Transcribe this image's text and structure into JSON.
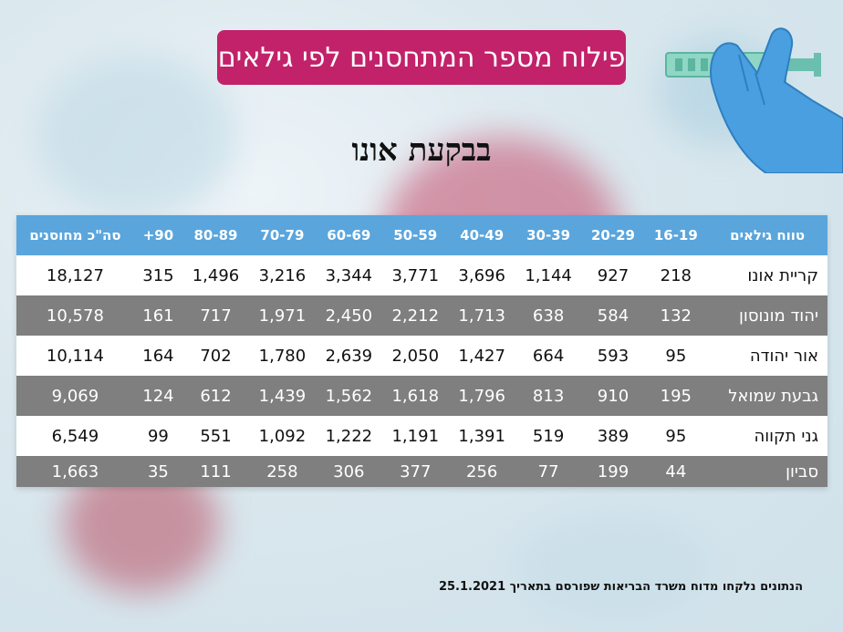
{
  "title": "פילוח מספר המתחסנים לפי גילאים",
  "subtitle": "בבקעת אונו",
  "headers": [
    "טווח גילאים",
    "16-19",
    "20-29",
    "30-39",
    "40-49",
    "50-59",
    "60-69",
    "70-79",
    "80-89",
    "90+",
    "סה\"כ מחוסנים"
  ],
  "rows": [
    {
      "city": "קריית אונו",
      "values": [
        "218",
        "927",
        "1,144",
        "3,696",
        "3,771",
        "3,344",
        "3,216",
        "1,496",
        "315",
        "18,127"
      ]
    },
    {
      "city": "יהוד מונוסון",
      "values": [
        "132",
        "584",
        "638",
        "1,713",
        "2,212",
        "2,450",
        "1,971",
        "717",
        "161",
        "10,578"
      ]
    },
    {
      "city": "אור יהודה",
      "values": [
        "95",
        "593",
        "664",
        "1,427",
        "2,050",
        "2,639",
        "1,780",
        "702",
        "164",
        "10,114"
      ]
    },
    {
      "city": "גבעת שמואל",
      "values": [
        "195",
        "910",
        "813",
        "1,796",
        "1,618",
        "1,562",
        "1,439",
        "612",
        "124",
        "9,069"
      ]
    },
    {
      "city": "גני תקווה",
      "values": [
        "95",
        "389",
        "519",
        "1,391",
        "1,191",
        "1,222",
        "1,092",
        "551",
        "99",
        "6,549"
      ]
    },
    {
      "city": "סביון",
      "values": [
        "44",
        "199",
        "77",
        "256",
        "377",
        "306",
        "258",
        "111",
        "35",
        "1,663"
      ]
    }
  ],
  "footer": "הנתונים נלקחו מדוח משרד הבריאות שפורסם בתאריך 25.1.2021",
  "colors": {
    "title_bg": "#c2226a",
    "header_bg": "#5aa5dc",
    "row_grey": "#7f7f7f",
    "row_white": "#ffffff"
  },
  "illustration_icon": "gloved-hand-syringe-icon"
}
